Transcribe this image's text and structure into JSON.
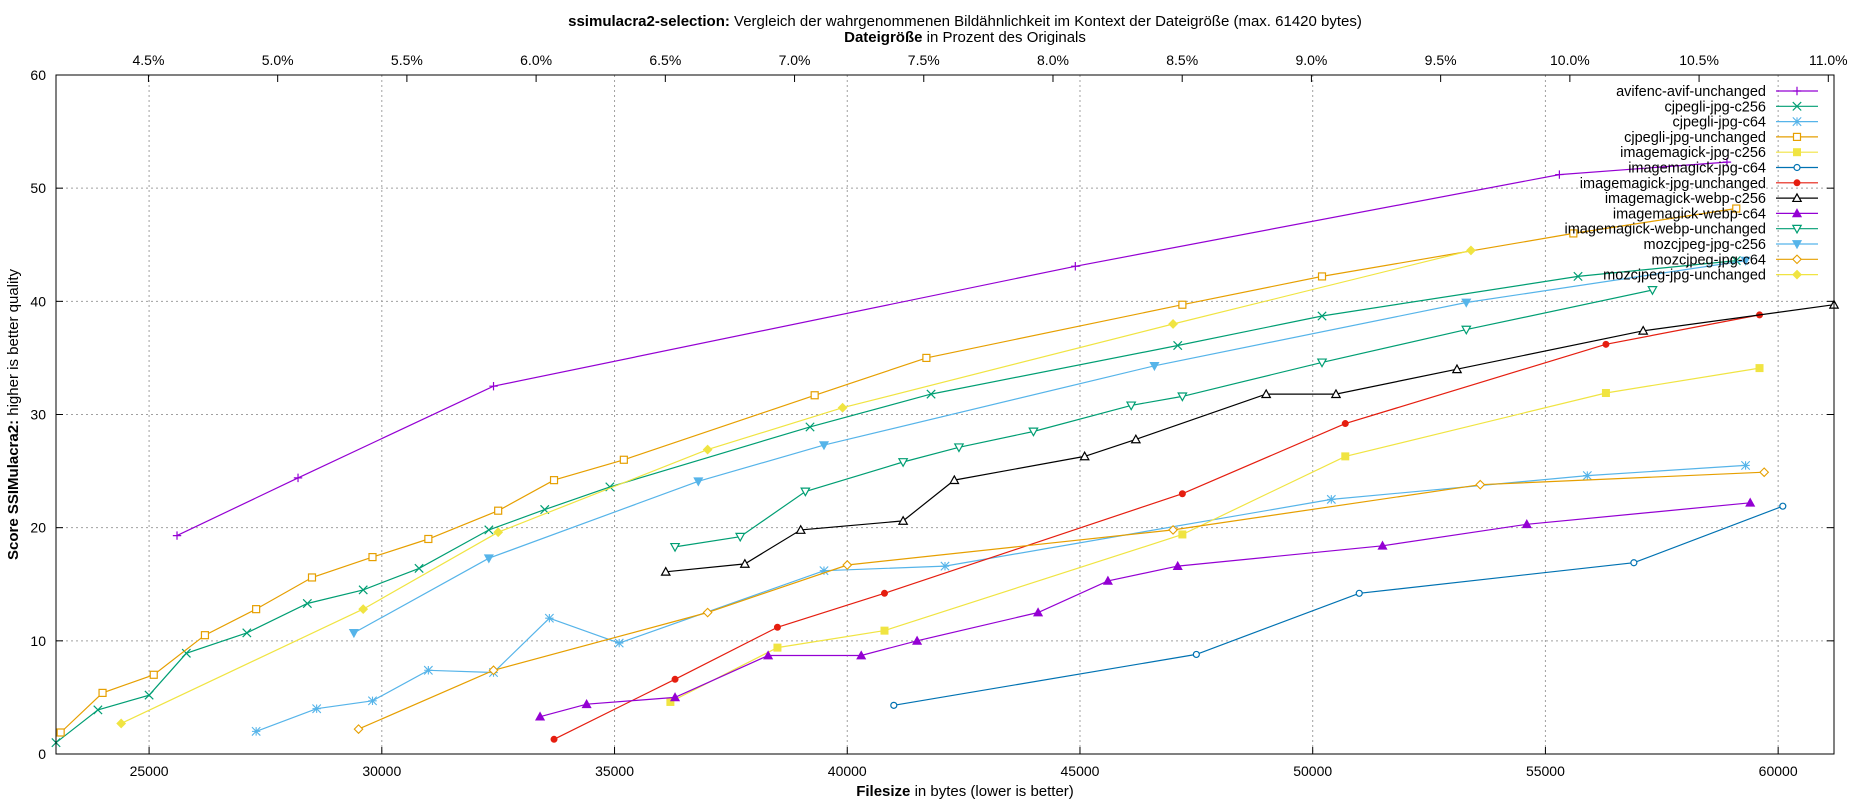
{
  "chart_data": {
    "type": "line",
    "title": {
      "bold": "ssimulacra2-selection:",
      "rest": " Vergleich der wahrgenommenen Bildähnlichkeit im Kontext der Dateigröße (max. 61420 bytes)"
    },
    "x2label": {
      "bold": "Dateigröße",
      "rest": " in Prozent des Originals"
    },
    "xlabel": {
      "bold": "Filesize",
      "rest": " in bytes (lower is better)"
    },
    "ylabel": {
      "bold": "Score SSIMulacra2:",
      "rest": " higher is better quality"
    },
    "xlim": [
      23000,
      61200
    ],
    "ylim": [
      0,
      60
    ],
    "x_ticks": [
      25000,
      30000,
      35000,
      40000,
      45000,
      50000,
      55000,
      60000
    ],
    "x_tick_labels": [
      "25000",
      "30000",
      "35000",
      "40000",
      "45000",
      "50000",
      "55000",
      "60000"
    ],
    "y_ticks": [
      0,
      10,
      20,
      30,
      40,
      50,
      60
    ],
    "y_tick_labels": [
      "0",
      "10",
      "20",
      "30",
      "40",
      "50",
      "60"
    ],
    "x2_ticks": [
      0.045,
      0.05,
      0.055,
      0.06,
      0.065,
      0.07,
      0.075,
      0.08,
      0.085,
      0.09,
      0.095,
      0.1,
      0.105,
      0.11
    ],
    "x2_tick_labels": [
      "4.5%",
      "5.0%",
      "5.5%",
      "6.0%",
      "6.5%",
      "7.0%",
      "7.5%",
      "8.0%",
      "8.5%",
      "9.0%",
      "9.5%",
      "10.0%",
      "10.5%",
      "11.0%"
    ],
    "x2_reference_bytes": 555250,
    "grid": true,
    "legend_position": "top-right",
    "series": [
      {
        "name": "avifenc-avif-unchanged",
        "color": "#9400d3",
        "marker": "plus",
        "x": [
          25600,
          28200,
          32400,
          44900,
          55300,
          58900
        ],
        "y": [
          19.3,
          24.4,
          32.5,
          43.1,
          51.2,
          52.3
        ]
      },
      {
        "name": "cjpegli-jpg-c256",
        "color": "#009e73",
        "marker": "x",
        "x": [
          23000,
          23900,
          25000,
          25800,
          27100,
          28400,
          29600,
          30800,
          32300,
          33500,
          34900,
          39200,
          41800,
          47100,
          50200,
          55700,
          59100
        ],
        "y": [
          1.0,
          3.9,
          5.2,
          8.9,
          10.7,
          13.3,
          14.5,
          16.4,
          19.8,
          21.6,
          23.6,
          28.9,
          31.8,
          36.1,
          38.7,
          42.2,
          43.6
        ]
      },
      {
        "name": "cjpegli-jpg-c64",
        "color": "#56b4e9",
        "marker": "asterisk",
        "x": [
          27300,
          28600,
          29800,
          31000,
          32400,
          33600,
          35100,
          39500,
          42100,
          50400,
          55900,
          59300
        ],
        "y": [
          2.0,
          4.0,
          4.7,
          7.4,
          7.2,
          12.0,
          9.8,
          16.2,
          16.6,
          22.5,
          24.6,
          25.5
        ]
      },
      {
        "name": "cjpegli-jpg-unchanged",
        "color": "#e69f00",
        "marker": "square",
        "x": [
          23100,
          24000,
          25100,
          26200,
          27300,
          28500,
          29800,
          31000,
          32500,
          33700,
          35200,
          39300,
          41700,
          47200,
          50200,
          55600,
          59100
        ],
        "y": [
          1.9,
          5.4,
          7.0,
          10.5,
          12.8,
          15.6,
          17.4,
          19.0,
          21.5,
          24.2,
          26.0,
          31.7,
          35.0,
          39.7,
          42.2,
          46.0,
          48.2
        ]
      },
      {
        "name": "imagemagick-jpg-c256",
        "color": "#f0e442",
        "marker": "filled-square",
        "x": [
          36200,
          38500,
          40800,
          47200,
          50700,
          56300,
          59600
        ],
        "y": [
          4.6,
          9.4,
          10.9,
          19.4,
          26.3,
          31.9,
          34.1
        ]
      },
      {
        "name": "imagemagick-jpg-c64",
        "color": "#0072b2",
        "marker": "circle",
        "x": [
          41000,
          47500,
          51000,
          56900,
          60100
        ],
        "y": [
          4.3,
          8.8,
          14.2,
          16.9,
          21.9
        ]
      },
      {
        "name": "imagemagick-jpg-unchanged",
        "color": "#e51e10",
        "marker": "filled-circle",
        "x": [
          33700,
          36300,
          38500,
          40800,
          47200,
          50700,
          56300,
          59600
        ],
        "y": [
          1.3,
          6.6,
          11.2,
          14.2,
          23.0,
          29.2,
          36.2,
          38.8
        ]
      },
      {
        "name": "imagemagick-webp-c256",
        "color": "#000000",
        "marker": "triangle",
        "x": [
          36100,
          37800,
          39000,
          41200,
          42300,
          45100,
          46200,
          49000,
          50500,
          53100,
          57100,
          61200
        ],
        "y": [
          16.1,
          16.8,
          19.8,
          20.6,
          24.2,
          26.3,
          27.8,
          31.8,
          31.8,
          34.0,
          37.4,
          39.7
        ]
      },
      {
        "name": "imagemagick-webp-c64",
        "color": "#9400d3",
        "marker": "filled-triangle",
        "x": [
          33400,
          34400,
          36300,
          38300,
          40300,
          41500,
          44100,
          45600,
          47100,
          51500,
          54600,
          59400
        ],
        "y": [
          3.3,
          4.4,
          5.0,
          8.7,
          8.7,
          10.0,
          12.5,
          15.3,
          16.6,
          18.4,
          20.3,
          22.2
        ]
      },
      {
        "name": "imagemagick-webp-unchanged",
        "color": "#009e73",
        "marker": "down-triangle",
        "x": [
          36300,
          37700,
          39100,
          41200,
          42400,
          44000,
          46100,
          47200,
          50200,
          53300,
          57300
        ],
        "y": [
          18.3,
          19.2,
          23.2,
          25.8,
          27.1,
          28.5,
          30.8,
          31.6,
          34.6,
          37.5,
          41.0
        ]
      },
      {
        "name": "mozcjpeg-jpg-c256",
        "color": "#56b4e9",
        "marker": "filled-down-triangle",
        "x": [
          29400,
          32300,
          36800,
          39500,
          46600,
          53300,
          59300
        ],
        "y": [
          10.7,
          17.3,
          24.1,
          27.3,
          34.3,
          39.9,
          43.6
        ]
      },
      {
        "name": "mozcjpeg-jpg-c64",
        "color": "#e69f00",
        "marker": "diamond",
        "x": [
          29500,
          32400,
          37000,
          40000,
          47000,
          53600,
          59700
        ],
        "y": [
          2.2,
          7.4,
          12.5,
          16.7,
          19.8,
          23.8,
          24.9
        ]
      },
      {
        "name": "mozcjpeg-jpg-unchanged",
        "color": "#f0e442",
        "marker": "filled-diamond",
        "x": [
          24400,
          29600,
          32500,
          37000,
          39900,
          47000,
          53400
        ],
        "y": [
          2.7,
          12.8,
          19.6,
          26.9,
          30.6,
          38.0,
          44.5
        ]
      }
    ]
  }
}
